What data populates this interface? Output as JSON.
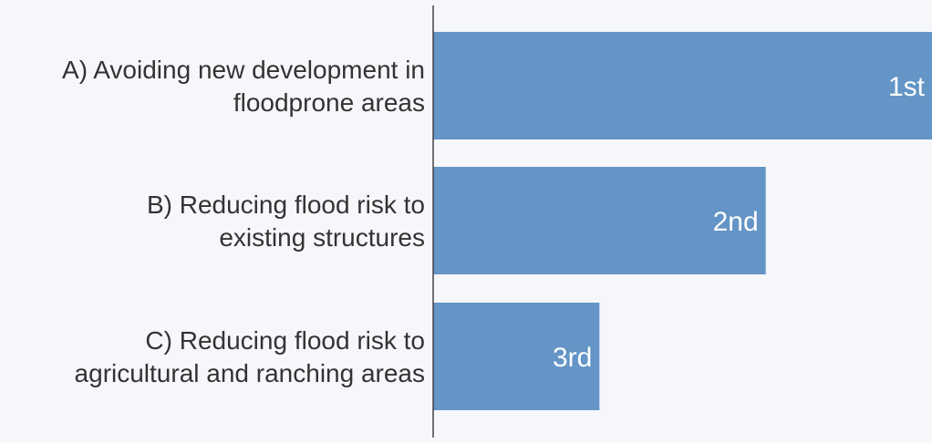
{
  "chart_data": {
    "type": "bar",
    "orientation": "horizontal",
    "categories": [
      [
        "A) Avoiding new development in",
        "floodprone areas"
      ],
      [
        "B) Reducing flood risk to",
        "existing structures"
      ],
      [
        "C) Reducing flood risk to",
        "agricultural and ranching areas"
      ]
    ],
    "values": [
      3,
      2,
      1
    ],
    "data_labels": [
      "1st",
      "2nd",
      "3rd"
    ],
    "xlim": [
      0,
      3
    ],
    "grid": false,
    "legend": "none",
    "colors": {
      "bar": "#6495c6",
      "label_text": "#333333",
      "bar_text": "#ffffff",
      "axis": "#444444",
      "background": "#f6f7fb"
    }
  }
}
